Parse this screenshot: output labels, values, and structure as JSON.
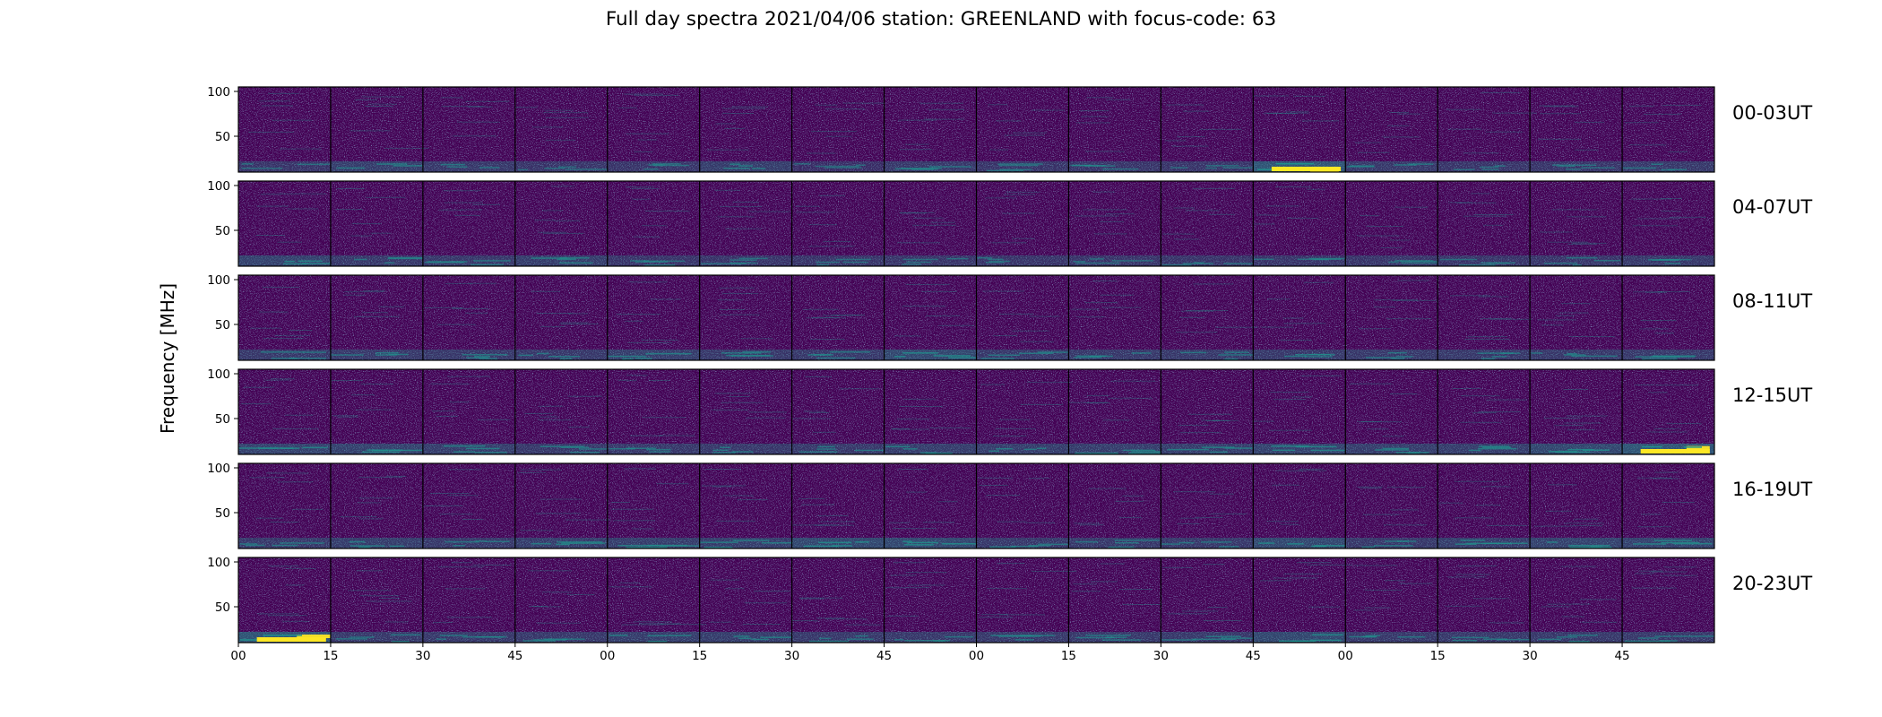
{
  "title": "Full day spectra 2021/04/06 station: GREENLAND with focus-code: 63",
  "ylabel": "Frequency [MHz]",
  "chart_data": {
    "type": "heatmap",
    "title": "Full day spectra 2021/04/06 station: GREENLAND with focus-code: 63",
    "ylabel": "Frequency [MHz]",
    "xlabel": "",
    "colormap": "viridis",
    "colors": {
      "background": "#440154",
      "low": "#3b1c73",
      "mid": "#21918c",
      "high": "#fde725"
    },
    "ylim": [
      10,
      105
    ],
    "y_ticks": [
      "100",
      "50"
    ],
    "x_ticks": [
      "00",
      "15",
      "30",
      "45",
      "00",
      "15",
      "30",
      "45",
      "00",
      "15",
      "30",
      "45",
      "00",
      "15",
      "30",
      "45"
    ],
    "panels_per_row": 16,
    "panel_minutes": 15,
    "rows": [
      {
        "label": "00-03UT"
      },
      {
        "label": "04-07UT"
      },
      {
        "label": "08-11UT"
      },
      {
        "label": "12-15UT"
      },
      {
        "label": "16-19UT"
      },
      {
        "label": "20-23UT"
      }
    ],
    "bright_band_intensity": [
      [
        0.2,
        0.4,
        0.3,
        0.2,
        0.2,
        0.4,
        0.1,
        0.3,
        0.2,
        0.2,
        0.2,
        0.9,
        0.3,
        0.2,
        0.2,
        0.3
      ],
      [
        0.5,
        0.3,
        0.3,
        0.4,
        0.2,
        0.2,
        0.2,
        0.2,
        0.2,
        0.2,
        0.2,
        0.2,
        0.2,
        0.2,
        0.2,
        0.3
      ],
      [
        0.3,
        0.3,
        0.3,
        0.3,
        0.4,
        0.3,
        0.3,
        0.6,
        0.3,
        0.3,
        0.3,
        0.3,
        0.3,
        0.3,
        0.3,
        0.3
      ],
      [
        0.5,
        0.5,
        0.4,
        0.3,
        0.3,
        0.3,
        0.3,
        0.4,
        0.4,
        0.4,
        0.4,
        0.5,
        0.4,
        0.4,
        0.6,
        0.9
      ],
      [
        0.3,
        0.4,
        0.3,
        0.4,
        0.4,
        0.4,
        0.6,
        0.6,
        0.3,
        0.3,
        0.3,
        0.6,
        0.3,
        0.4,
        0.5,
        0.5
      ],
      [
        0.9,
        0.3,
        0.3,
        0.3,
        0.4,
        0.4,
        0.3,
        0.3,
        0.3,
        0.3,
        0.3,
        0.6,
        0.3,
        0.3,
        0.3,
        0.3
      ]
    ]
  }
}
